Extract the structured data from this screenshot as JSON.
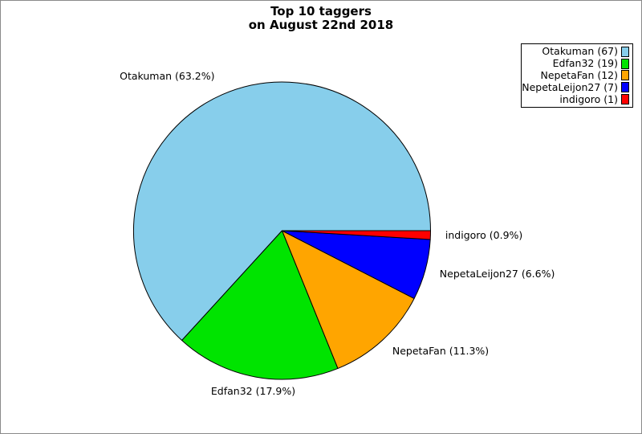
{
  "page": {
    "background": "#ffffff",
    "frame_border_color": "#8a8a8a"
  },
  "chart_data": {
    "type": "pie",
    "title": "Top 10 taggers",
    "subtitle": "on August 22nd 2018",
    "categories": [
      "Otakuman",
      "Edfan32",
      "NepetaFan",
      "NepetaLeijon27",
      "indigoro"
    ],
    "values": [
      67,
      19,
      12,
      7,
      1
    ],
    "percentages": [
      63.2,
      17.9,
      11.3,
      6.6,
      0.9
    ],
    "slice_labels": [
      "Otakuman (63.2%)",
      "Edfan32 (17.9%)",
      "NepetaFan (11.3%)",
      "NepetaLeijon27 (6.6%)",
      "indigoro (0.9%)"
    ],
    "legend_labels": [
      "Otakuman (67)",
      "Edfan32 (19)",
      "NepetaFan (12)",
      "NepetaLeijon27 (7)",
      "indigoro (1)"
    ],
    "colors": [
      "#87CEEB",
      "#00E400",
      "#FFA500",
      "#0000FF",
      "#FF0000"
    ],
    "outline_color": "#000000",
    "start_angle_deg": 0,
    "direction": "counterclockwise",
    "legend_position": "top-right",
    "legend_border_color": "#000000"
  }
}
